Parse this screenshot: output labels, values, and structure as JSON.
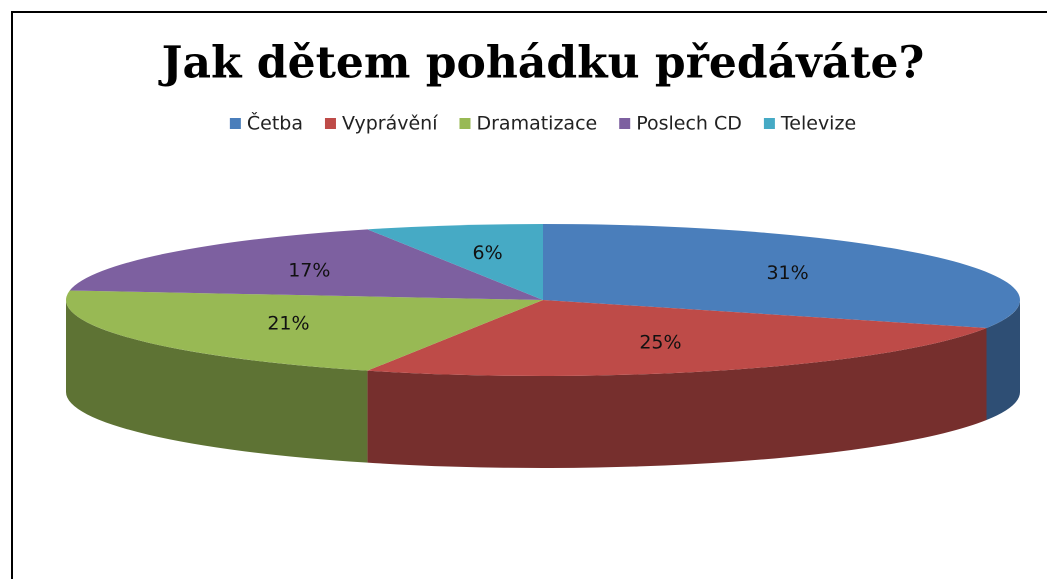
{
  "chart_data": {
    "type": "pie3d",
    "title": "Jak dětem pohádku předáváte?",
    "categories": [
      "Četba",
      "Vyprávění",
      "Dramatizace",
      "Poslech CD",
      "Televize"
    ],
    "values": [
      31,
      25,
      21,
      17,
      6
    ],
    "value_labels": [
      "31%",
      "25%",
      "21%",
      "17%",
      "6%"
    ],
    "colors": [
      "#4a7ebb",
      "#be4b48",
      "#98b954",
      "#7d60a0",
      "#46aac5"
    ],
    "legend": "top"
  }
}
